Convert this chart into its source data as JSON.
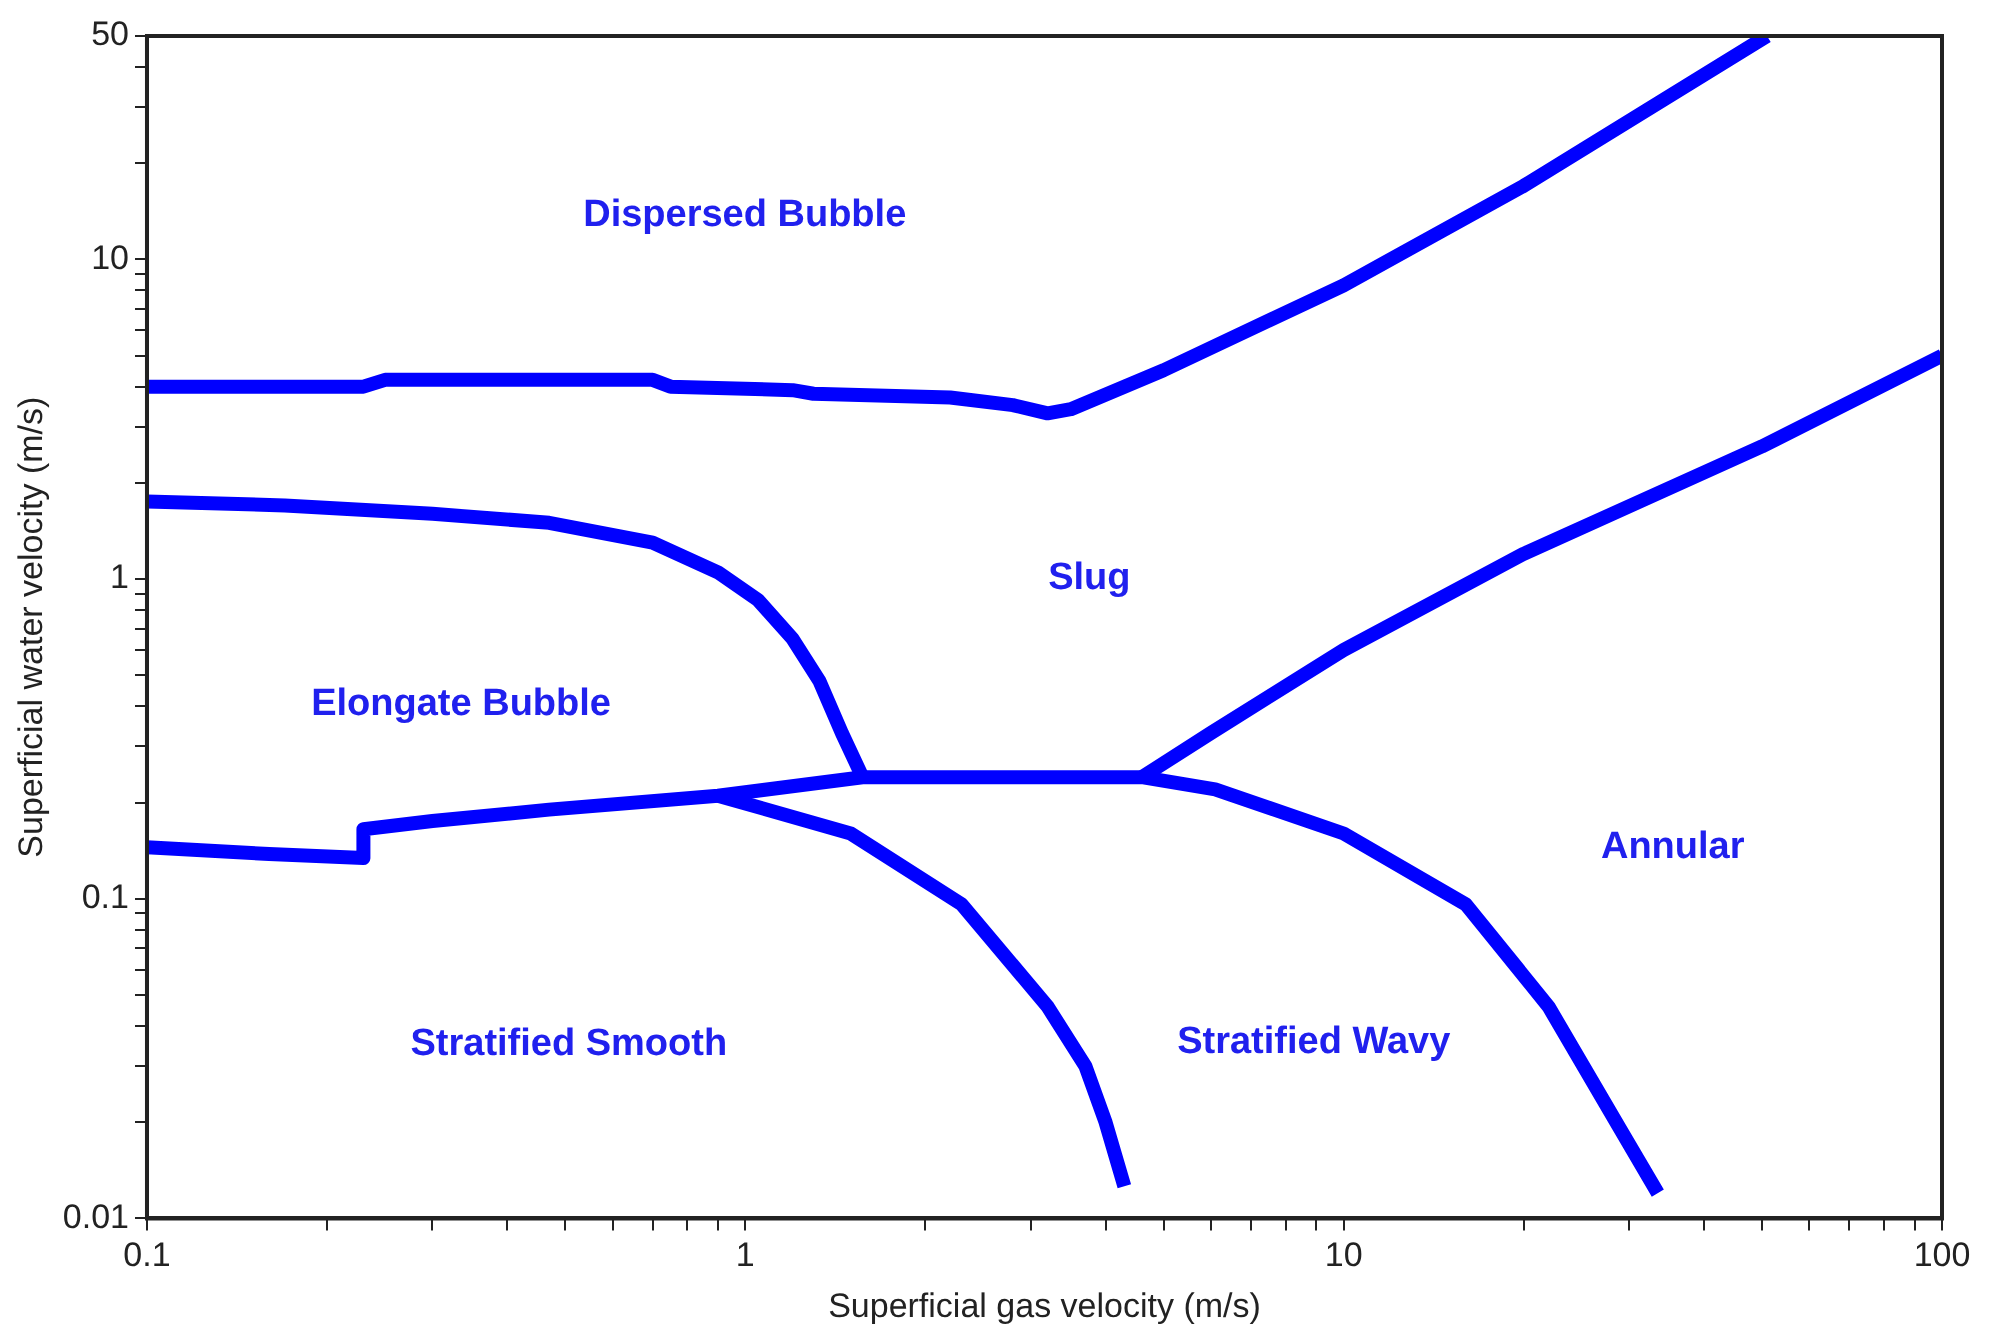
{
  "chart_data": {
    "type": "line",
    "xlabel": "Superficial gas velocity (m/s)",
    "ylabel": "Superficial water velocity (m/s)",
    "log": "xy",
    "grid": false,
    "legend": false,
    "marker": "none",
    "line_style": "solid",
    "xlim": [
      0.1,
      100
    ],
    "ylim": [
      0.01,
      50
    ],
    "xticks": [
      0.1,
      {
        "value": 0.2,
        "label": null
      },
      {
        "value": 0.3,
        "label": null
      },
      {
        "value": 0.4,
        "label": null
      },
      {
        "value": 0.5,
        "label": null
      },
      {
        "value": 0.6,
        "label": null
      },
      {
        "value": 0.7,
        "label": null
      },
      {
        "value": 0.8,
        "label": null
      },
      {
        "value": 0.9,
        "label": null
      },
      1,
      {
        "value": 2,
        "label": null
      },
      {
        "value": 3,
        "label": null
      },
      {
        "value": 4,
        "label": null
      },
      {
        "value": 5,
        "label": null
      },
      {
        "value": 6,
        "label": null
      },
      {
        "value": 7,
        "label": null
      },
      {
        "value": 8,
        "label": null
      },
      {
        "value": 9,
        "label": null
      },
      10,
      {
        "value": 20,
        "label": null
      },
      {
        "value": 30,
        "label": null
      },
      {
        "value": 40,
        "label": null
      },
      {
        "value": 50,
        "label": null
      },
      {
        "value": 60,
        "label": null
      },
      {
        "value": 70,
        "label": null
      },
      {
        "value": 80,
        "label": null
      },
      {
        "value": 90,
        "label": null
      },
      100
    ],
    "yticks": [
      0.01,
      {
        "value": 0.02,
        "label": null
      },
      {
        "value": 0.03,
        "label": null
      },
      {
        "value": 0.04,
        "label": null
      },
      {
        "value": 0.05,
        "label": null
      },
      {
        "value": 0.06,
        "label": null
      },
      {
        "value": 0.07,
        "label": null
      },
      {
        "value": 0.08,
        "label": null
      },
      {
        "value": 0.09,
        "label": null
      },
      0.1,
      {
        "value": 0.2,
        "label": null
      },
      {
        "value": 0.3,
        "label": null
      },
      {
        "value": 0.4,
        "label": null
      },
      {
        "value": 0.5,
        "label": null
      },
      {
        "value": 0.6,
        "label": null
      },
      {
        "value": 0.7,
        "label": null
      },
      {
        "value": 0.8,
        "label": null
      },
      {
        "value": 0.9,
        "label": null
      },
      1,
      {
        "value": 2,
        "label": null
      },
      {
        "value": 3,
        "label": null
      },
      {
        "value": 4,
        "label": null
      },
      {
        "value": 5,
        "label": null
      },
      {
        "value": 6,
        "label": null
      },
      {
        "value": 7,
        "label": null
      },
      {
        "value": 8,
        "label": null
      },
      {
        "value": 9,
        "label": null
      },
      10,
      {
        "value": 20,
        "label": null
      },
      {
        "value": 30,
        "label": null
      },
      {
        "value": 40,
        "label": null
      },
      50
    ],
    "series": [
      {
        "color": "#0000ff",
        "x": [
          0.1,
          0.23,
          0.25,
          0.7,
          0.75,
          1.2,
          1.3,
          2.2,
          2.8,
          3.2,
          3.5,
          5,
          10,
          20,
          51
        ],
        "values": [
          4,
          4,
          4.2,
          4.2,
          4,
          3.9,
          3.8,
          3.7,
          3.5,
          3.3,
          3.4,
          4.5,
          8.3,
          17,
          50
        ]
      },
      {
        "color": "#0000ff",
        "x": [
          0.1,
          0.17,
          0.3,
          0.47,
          0.7,
          0.9,
          1.05,
          1.2,
          1.33,
          1.45,
          1.57
        ],
        "values": [
          1.75,
          1.7,
          1.6,
          1.5,
          1.3,
          1.05,
          0.86,
          0.65,
          0.48,
          0.33,
          0.24
        ]
      },
      {
        "color": "#0000ff",
        "x": [
          0.1,
          0.16,
          0.23,
          0.23,
          0.3,
          0.47,
          0.9,
          1.57,
          3,
          4.6,
          6.1,
          10,
          16,
          22,
          29,
          33.5
        ],
        "values": [
          0.145,
          0.138,
          0.134,
          0.165,
          0.175,
          0.19,
          0.21,
          0.24,
          0.24,
          0.24,
          0.22,
          0.16,
          0.096,
          0.046,
          0.019,
          0.012
        ]
      },
      {
        "color": "#0000ff",
        "x": [
          0.9,
          1.5,
          2.3,
          3.2,
          3.7,
          4.0,
          4.3
        ],
        "values": [
          0.21,
          0.16,
          0.096,
          0.046,
          0.03,
          0.02,
          0.0126
        ]
      },
      {
        "color": "#0000ff",
        "x": [
          4.6,
          6,
          10,
          20,
          50,
          100
        ],
        "values": [
          0.24,
          0.33,
          0.6,
          1.2,
          2.6,
          5
        ]
      }
    ],
    "annotations": [
      "Dispersed Bubble",
      "Slug",
      "Elongate Bubble",
      "Annular",
      "Stratified Smooth",
      "Stratified Wavy"
    ]
  }
}
